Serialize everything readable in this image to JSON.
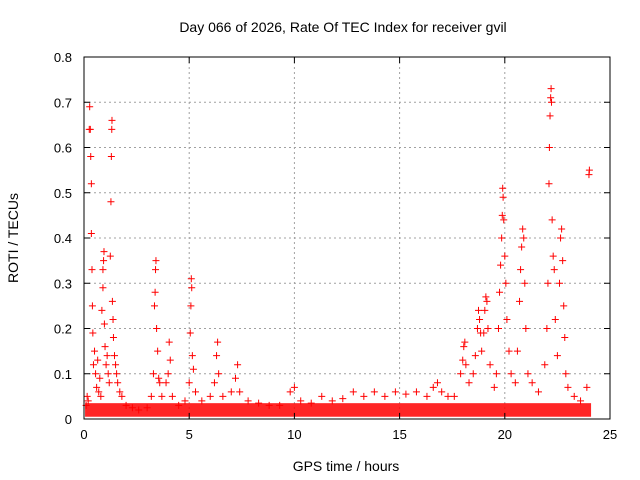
{
  "chart_data": {
    "type": "scatter",
    "title": "Day 066 of 2026, Rate Of TEC Index for receiver gvil",
    "xlabel": "GPS time / hours",
    "ylabel": "ROTI / TECUs",
    "xlim": [
      0,
      25
    ],
    "ylim": [
      0,
      0.8
    ],
    "x_ticks": [
      0,
      5,
      10,
      15,
      20,
      25
    ],
    "y_ticks": [
      0,
      0.1,
      0.2,
      0.3,
      0.4,
      0.5,
      0.6,
      0.7,
      0.8
    ],
    "grid": true,
    "marker": "+",
    "color": "#ff0000",
    "series": [
      {
        "name": "ROTI",
        "points": [
          [
            0.1,
            0.03
          ],
          [
            0.15,
            0.05
          ],
          [
            0.2,
            0.04
          ],
          [
            0.25,
            0.64
          ],
          [
            0.27,
            0.69
          ],
          [
            0.3,
            0.64
          ],
          [
            0.32,
            0.58
          ],
          [
            0.35,
            0.52
          ],
          [
            0.35,
            0.41
          ],
          [
            0.38,
            0.33
          ],
          [
            0.4,
            0.25
          ],
          [
            0.42,
            0.19
          ],
          [
            0.45,
            0.12
          ],
          [
            0.5,
            0.15
          ],
          [
            0.55,
            0.1
          ],
          [
            0.6,
            0.07
          ],
          [
            0.65,
            0.13
          ],
          [
            0.7,
            0.06
          ],
          [
            0.75,
            0.09
          ],
          [
            0.8,
            0.05
          ],
          [
            0.85,
            0.24
          ],
          [
            0.9,
            0.29
          ],
          [
            0.9,
            0.33
          ],
          [
            0.93,
            0.35
          ],
          [
            0.95,
            0.37
          ],
          [
            0.97,
            0.21
          ],
          [
            1.0,
            0.16
          ],
          [
            1.05,
            0.12
          ],
          [
            1.1,
            0.14
          ],
          [
            1.15,
            0.1
          ],
          [
            1.2,
            0.08
          ],
          [
            1.25,
            0.36
          ],
          [
            1.28,
            0.48
          ],
          [
            1.3,
            0.58
          ],
          [
            1.32,
            0.64
          ],
          [
            1.33,
            0.66
          ],
          [
            1.35,
            0.26
          ],
          [
            1.38,
            0.22
          ],
          [
            1.4,
            0.18
          ],
          [
            1.45,
            0.14
          ],
          [
            1.5,
            0.12
          ],
          [
            1.55,
            0.1
          ],
          [
            1.6,
            0.08
          ],
          [
            1.7,
            0.06
          ],
          [
            1.8,
            0.05
          ],
          [
            2.0,
            0.03
          ],
          [
            2.3,
            0.025
          ],
          [
            2.6,
            0.02
          ],
          [
            3.0,
            0.025
          ],
          [
            3.2,
            0.05
          ],
          [
            3.3,
            0.1
          ],
          [
            3.35,
            0.25
          ],
          [
            3.38,
            0.28
          ],
          [
            3.4,
            0.33
          ],
          [
            3.42,
            0.35
          ],
          [
            3.45,
            0.2
          ],
          [
            3.5,
            0.15
          ],
          [
            3.55,
            0.09
          ],
          [
            3.6,
            0.08
          ],
          [
            3.7,
            0.05
          ],
          [
            3.9,
            0.08
          ],
          [
            4.0,
            0.1
          ],
          [
            4.05,
            0.17
          ],
          [
            4.1,
            0.13
          ],
          [
            4.2,
            0.05
          ],
          [
            4.5,
            0.03
          ],
          [
            4.8,
            0.04
          ],
          [
            5.0,
            0.08
          ],
          [
            5.05,
            0.19
          ],
          [
            5.08,
            0.25
          ],
          [
            5.1,
            0.31
          ],
          [
            5.12,
            0.29
          ],
          [
            5.15,
            0.14
          ],
          [
            5.2,
            0.11
          ],
          [
            5.3,
            0.06
          ],
          [
            5.6,
            0.04
          ],
          [
            6.0,
            0.05
          ],
          [
            6.2,
            0.08
          ],
          [
            6.3,
            0.14
          ],
          [
            6.35,
            0.17
          ],
          [
            6.4,
            0.1
          ],
          [
            6.6,
            0.05
          ],
          [
            7.0,
            0.06
          ],
          [
            7.2,
            0.09
          ],
          [
            7.3,
            0.12
          ],
          [
            7.4,
            0.06
          ],
          [
            7.8,
            0.04
          ],
          [
            8.3,
            0.035
          ],
          [
            8.8,
            0.03
          ],
          [
            9.3,
            0.03
          ],
          [
            9.8,
            0.06
          ],
          [
            10.0,
            0.07
          ],
          [
            10.3,
            0.04
          ],
          [
            10.8,
            0.035
          ],
          [
            11.3,
            0.05
          ],
          [
            11.8,
            0.04
          ],
          [
            12.3,
            0.045
          ],
          [
            12.8,
            0.06
          ],
          [
            13.3,
            0.05
          ],
          [
            13.8,
            0.06
          ],
          [
            14.3,
            0.05
          ],
          [
            14.8,
            0.06
          ],
          [
            15.3,
            0.055
          ],
          [
            15.8,
            0.06
          ],
          [
            16.3,
            0.05
          ],
          [
            16.6,
            0.07
          ],
          [
            16.8,
            0.08
          ],
          [
            17.0,
            0.06
          ],
          [
            17.3,
            0.05
          ],
          [
            17.6,
            0.05
          ],
          [
            17.9,
            0.1
          ],
          [
            18.0,
            0.13
          ],
          [
            18.05,
            0.16
          ],
          [
            18.1,
            0.17
          ],
          [
            18.15,
            0.12
          ],
          [
            18.3,
            0.08
          ],
          [
            18.5,
            0.1
          ],
          [
            18.6,
            0.14
          ],
          [
            18.7,
            0.2
          ],
          [
            18.75,
            0.24
          ],
          [
            18.8,
            0.22
          ],
          [
            18.85,
            0.19
          ],
          [
            18.9,
            0.15
          ],
          [
            19.0,
            0.19
          ],
          [
            19.05,
            0.24
          ],
          [
            19.1,
            0.27
          ],
          [
            19.15,
            0.26
          ],
          [
            19.2,
            0.2
          ],
          [
            19.3,
            0.12
          ],
          [
            19.5,
            0.07
          ],
          [
            19.6,
            0.1
          ],
          [
            19.7,
            0.2
          ],
          [
            19.75,
            0.28
          ],
          [
            19.8,
            0.34
          ],
          [
            19.85,
            0.4
          ],
          [
            19.88,
            0.45
          ],
          [
            19.9,
            0.51
          ],
          [
            19.92,
            0.49
          ],
          [
            19.95,
            0.44
          ],
          [
            20.0,
            0.36
          ],
          [
            20.05,
            0.3
          ],
          [
            20.1,
            0.22
          ],
          [
            20.2,
            0.15
          ],
          [
            20.3,
            0.1
          ],
          [
            20.5,
            0.08
          ],
          [
            20.6,
            0.15
          ],
          [
            20.7,
            0.26
          ],
          [
            20.75,
            0.33
          ],
          [
            20.8,
            0.38
          ],
          [
            20.85,
            0.42
          ],
          [
            20.9,
            0.4
          ],
          [
            20.95,
            0.3
          ],
          [
            21.0,
            0.2
          ],
          [
            21.1,
            0.1
          ],
          [
            21.3,
            0.08
          ],
          [
            21.6,
            0.06
          ],
          [
            21.9,
            0.12
          ],
          [
            22.0,
            0.2
          ],
          [
            22.05,
            0.3
          ],
          [
            22.1,
            0.52
          ],
          [
            22.12,
            0.6
          ],
          [
            22.15,
            0.67
          ],
          [
            22.18,
            0.71
          ],
          [
            22.2,
            0.73
          ],
          [
            22.22,
            0.7
          ],
          [
            22.25,
            0.44
          ],
          [
            22.3,
            0.36
          ],
          [
            22.35,
            0.33
          ],
          [
            22.4,
            0.22
          ],
          [
            22.5,
            0.14
          ],
          [
            22.6,
            0.3
          ],
          [
            22.65,
            0.4
          ],
          [
            22.7,
            0.42
          ],
          [
            22.75,
            0.35
          ],
          [
            22.8,
            0.25
          ],
          [
            22.85,
            0.18
          ],
          [
            22.9,
            0.1
          ],
          [
            23.0,
            0.07
          ],
          [
            23.3,
            0.05
          ],
          [
            23.6,
            0.04
          ],
          [
            23.9,
            0.07
          ],
          [
            24.0,
            0.54
          ],
          [
            24.02,
            0.55
          ]
        ]
      }
    ]
  }
}
